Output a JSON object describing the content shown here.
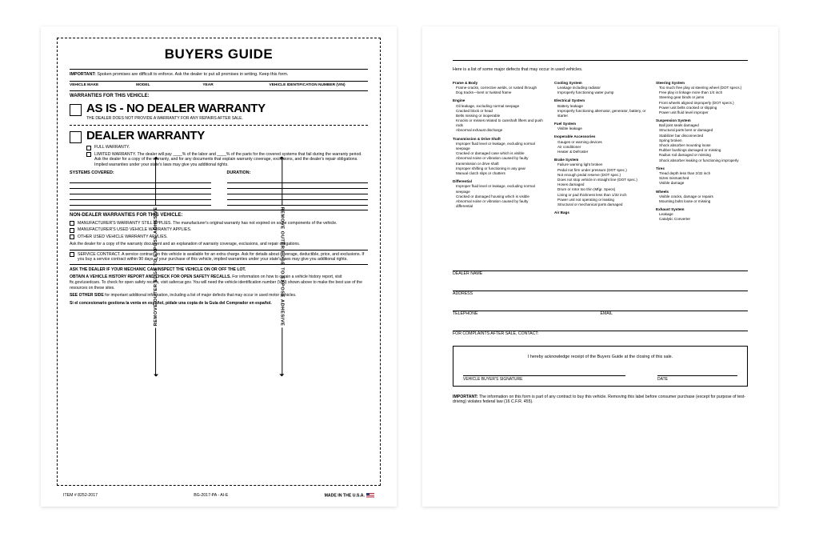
{
  "colors": {
    "text": "#000000",
    "bg": "#ffffff",
    "rule": "#000000"
  },
  "front": {
    "side_label": "REMOVE OUTER EDGE TO EXPOSE ADHESIVE",
    "title": "BUYERS GUIDE",
    "important_label": "IMPORTANT:",
    "important_text": "Spoken promises are difficult to enforce. Ask the dealer to put all promises in writing. Keep this form.",
    "fields": [
      "VEHICLE MAKE",
      "MODEL",
      "YEAR",
      "VEHICLE IDENTIFICATION NUMBER (VIN)"
    ],
    "warranties_label": "WARRANTIES FOR THIS VEHICLE:",
    "as_is_head": "AS IS - NO DEALER WARRANTY",
    "as_is_sub": "THE DEALER DOES NOT PROVIDE A WARRANTY FOR ANY REPAIRS AFTER SALE.",
    "dealer_head": "DEALER WARRANTY",
    "full_warranty": "FULL WARRANTY.",
    "limited_warranty": "LIMITED WARRANTY. The dealer will pay ____% of the labor and ____% of the parts for the covered systems that fail during the warranty period. Ask the dealer for a copy of the warranty, and for any documents that explain warranty coverage, exclusions, and the dealer's repair obligations. Implied warranties under your state's laws may give you additional rights.",
    "systems_label": "SYSTEMS COVERED:",
    "duration_label": "DURATION:",
    "nondealer_label": "NON-DEALER WARRANTIES FOR THIS VEHICLE:",
    "nd1": "MANUFACTURER'S WARRANTY STILL APPLIES. The manufacturer's original warranty has not expired on some components of the vehicle.",
    "nd2": "MANUFACTURER'S USED VEHICLE WARRANTY APPLIES.",
    "nd3": "OTHER USED VEHICLE WARRANTY APPLIES.",
    "nd_ask": "Ask the dealer for a copy of the warranty document and an explanation of warranty coverage, exclusions, and repair obligations.",
    "service_contract": "SERVICE CONTRACT. A service contract on this vehicle is available for an extra charge. Ask for details about coverage, deductible, price, and exclusions. If you buy a service contract within 90 days of your purchase of this vehicle, implied warranties under your state's laws may give you additional rights.",
    "mechanic": "ASK THE DEALER IF YOUR MECHANIC CAN INSPECT THE VEHICLE ON OR OFF THE LOT.",
    "history_bold": "OBTAIN A VEHICLE HISTORY REPORT AND CHECK FOR OPEN SAFETY RECALLS.",
    "history_text": "For information on how to obtain a vehicle history report, visit ftc.gov/usedcars. To check for open safety recalls, visit safercar.gov. You will need the vehicle identification number (VIN) shown above to make the best use of the resources on these sites.",
    "see_other": "SEE OTHER SIDE for important additional information, including a list of major defects that may occur in used motor vehicles.",
    "spanish": "Si el concesionario gestiona la venta en español, pídale una copia de la Guía del Comprador en español.",
    "item_no": "ITEM # 8252-2017",
    "form_no": "BG-2017-PA - AI-E",
    "made_in": "MADE IN THE U.S.A."
  },
  "back": {
    "intro": "Here is a list of some major defects that may occur in used vehicles.",
    "col1": [
      {
        "h": "Frame & Body",
        "items": [
          "Frame-cracks, corrective welds, or rusted through",
          "Dog tracks—bent or twisted frame"
        ]
      },
      {
        "h": "Engine",
        "items": [
          "Oil leakage, excluding normal seepage",
          "Cracked block or head",
          "Belts missing or inoperable",
          "Knocks or misses related to camshaft lifters and push rods",
          "Abnormal exhaust discharge"
        ]
      },
      {
        "h": "Transmission & Drive Shaft",
        "items": [
          "Improper fluid level or leakage, excluding normal seepage",
          "Cracked or damaged case which is visible",
          "Abnormal noise or vibration caused by faulty transmission or drive shaft",
          "Improper shifting or functioning in any gear",
          "Manual clutch slips or chatters"
        ]
      },
      {
        "h": "Differential",
        "items": [
          "Improper fluid level or leakage, excluding normal seepage",
          "Cracked or damaged housing which is visible",
          "Abnormal noise or vibration caused by faulty differential"
        ]
      }
    ],
    "col2": [
      {
        "h": "Cooling System",
        "items": [
          "Leakage including radiator",
          "Improperly functioning water pump"
        ]
      },
      {
        "h": "Electrical System",
        "items": [
          "Battery leakage",
          "Improperly functioning alternator, generator, battery, or starter"
        ]
      },
      {
        "h": "Fuel System",
        "items": [
          "Visible leakage"
        ]
      },
      {
        "h": "Inoperable Accessories",
        "items": [
          "Gauges or warning devices",
          "Air conditioner",
          "Heater & Defroster"
        ]
      },
      {
        "h": "Brake System",
        "items": [
          "Failure warning light broken",
          "Pedal not firm under pressure (DOT spec.)",
          "Not enough pedal reserve (DOT spec.)",
          "Does not stop vehicle in straight line (DOT spec.)",
          "Hoses damaged",
          "Drum or rotor too thin (Mfgr. Specs)",
          "Lining or pad thickness less than 1/32 inch",
          "Power unit not operating or leaking",
          "Structural or mechanical parts damaged"
        ]
      },
      {
        "h": "Air Bags",
        "items": []
      }
    ],
    "col3": [
      {
        "h": "Steering System",
        "items": [
          "Too much free play at steering wheel (DOT specs.)",
          "Free play in linkage more than 1/4 inch",
          "Steering gear binds or jams",
          "Front wheels aligned improperly (DOT specs.)",
          "Power unit belts cracked or slipping",
          "Power unit fluid level improper"
        ]
      },
      {
        "h": "Suspension System",
        "items": [
          "Ball joint seals damaged",
          "Structural parts bent or damaged",
          "Stabilizer bar disconnected",
          "Spring broken",
          "Shock absorber mounting loose",
          "Rubber bushings damaged or missing",
          "Radius rod damaged or missing",
          "Shock absorber leaking or functioning improperly"
        ]
      },
      {
        "h": "Tires",
        "items": [
          "Tread depth less than 2/32 inch",
          "Sizes mismatched",
          "Visible damage"
        ]
      },
      {
        "h": "Wheels",
        "items": [
          "Visible cracks, damage or repairs",
          "Mounting bolts loose or missing"
        ]
      },
      {
        "h": "Exhaust System",
        "items": [
          "Leakage",
          "Catalytic Converter"
        ]
      }
    ],
    "dealer_name": "DEALER NAME",
    "address": "ADDRESS",
    "telephone": "TELEPHONE",
    "email": "EMAIL",
    "complaints": "FOR COMPLAINTS AFTER SALE, CONTACT:",
    "ack": "I hereby acknowledge receipt of the Buyers Guide at the closing of this sale.",
    "sig": "VEHICLE BUYER'S SIGNATURE",
    "date": "DATE",
    "important_label": "IMPORTANT:",
    "important_text": "The information on this form is part of any contract to buy this vehicle. Removing this label before consumer purchase (except for purpose of test-driving) violates federal law (16 C.F.R. 455)."
  }
}
